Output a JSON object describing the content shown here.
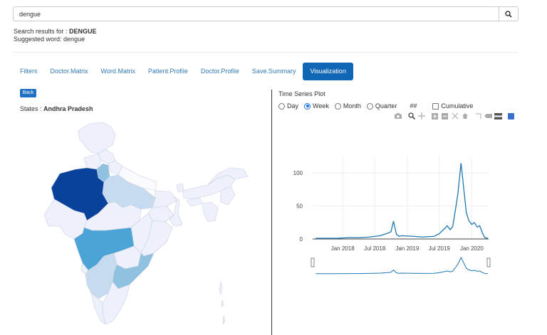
{
  "search": {
    "value": "dengue",
    "icon": "search-icon"
  },
  "results": {
    "label": "Search results for : ",
    "term": "DENGUE",
    "suggested": "Suggested word: dengue"
  },
  "tabs": [
    {
      "label": "Filters",
      "active": false
    },
    {
      "label": "Doctor.Matrix",
      "active": false
    },
    {
      "label": "Word.Matrix",
      "active": false
    },
    {
      "label": "Patient.Profile",
      "active": false
    },
    {
      "label": "Doctor.Profile",
      "active": false
    },
    {
      "label": "Save.Summary",
      "active": false
    },
    {
      "label": "Visualization",
      "active": true
    }
  ],
  "left": {
    "back_label": "Back",
    "states_label": "States : ",
    "state_name": "Andhra Pradesh"
  },
  "colors": {
    "tab_active": "#0f66b5",
    "link": "#337ab7",
    "line": "#1f77b4",
    "map_dark": "#08429b",
    "map_mid": "#4ba3d6",
    "map_light_blue": "#8fc1e0",
    "map_pale": "#c6dbef",
    "map_base": "#eef1fb"
  },
  "time_series": {
    "title": "Time Series Plot",
    "options": [
      {
        "label": "Day",
        "checked": false
      },
      {
        "label": "Week",
        "checked": true
      },
      {
        "label": "Month",
        "checked": false
      },
      {
        "label": "Quarter",
        "checked": false
      }
    ],
    "hash": "##",
    "cumulative_label": "Cumulative",
    "modebar_icons": [
      "camera-icon",
      "zoom-icon",
      "pan-icon",
      "zoom-in-icon",
      "zoom-out-icon",
      "autoscale-icon",
      "reset-axes-icon",
      "spike-lines-icon",
      "hover-closest-icon",
      "hover-compare-icon",
      "plotly-logo-icon"
    ]
  },
  "chart_data": {
    "type": "line",
    "x": [
      "2017-08-01",
      "2017-10-01",
      "2017-12-01",
      "2018-02-01",
      "2018-04-01",
      "2018-06-01",
      "2018-08-01",
      "2018-09-15",
      "2018-10-01",
      "2018-10-15",
      "2018-11-01",
      "2018-11-15",
      "2018-12-01",
      "2019-02-01",
      "2019-04-01",
      "2019-06-01",
      "2019-07-01",
      "2019-08-01",
      "2019-08-15",
      "2019-09-01",
      "2019-09-15",
      "2019-10-01",
      "2019-10-15",
      "2019-11-01",
      "2019-11-15",
      "2019-12-01",
      "2019-12-15",
      "2020-01-01",
      "2020-01-15",
      "2020-02-01",
      "2020-02-15",
      "2020-03-01",
      "2020-03-15",
      "2020-04-01"
    ],
    "y": [
      1,
      1,
      1,
      2,
      2,
      3,
      5,
      9,
      11,
      27,
      7,
      4,
      5,
      4,
      3,
      4,
      8,
      16,
      20,
      14,
      19,
      45,
      70,
      115,
      80,
      40,
      28,
      22,
      25,
      18,
      20,
      9,
      2,
      1
    ],
    "xticks": [
      "Jan 2018",
      "Jul 2018",
      "Jan 2019",
      "Jul 2019",
      "Jan 2020"
    ],
    "yticks": [
      0,
      50,
      100
    ],
    "ylim": [
      0,
      125
    ],
    "title": "",
    "xlabel": "",
    "ylabel": "",
    "grid": true,
    "range_slider": true
  }
}
